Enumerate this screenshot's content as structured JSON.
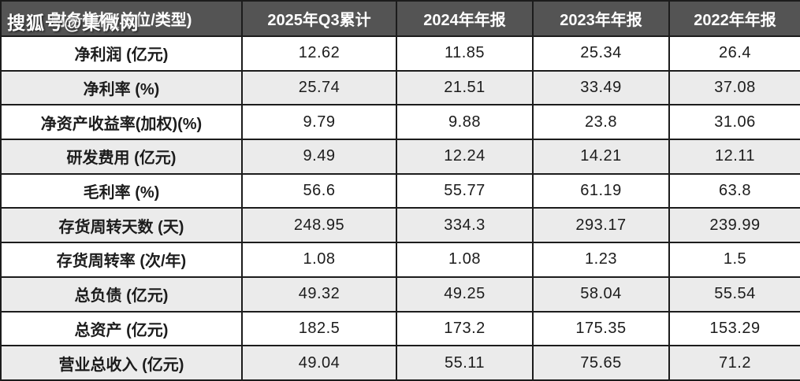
{
  "watermark": "搜狐号@集微网",
  "table": {
    "header": {
      "metric_column": "财务指标(单位/类型)",
      "columns": [
        "2025年Q3累计",
        "2024年年报",
        "2023年年报",
        "2022年年报"
      ]
    },
    "rows": [
      {
        "label": "净利润 (亿元)",
        "values": [
          "12.62",
          "11.85",
          "25.34",
          "26.4"
        ]
      },
      {
        "label": "净利率 (%)",
        "values": [
          "25.74",
          "21.51",
          "33.49",
          "37.08"
        ]
      },
      {
        "label": "净资产收益率(加权)(%)",
        "values": [
          "9.79",
          "9.88",
          "23.8",
          "31.06"
        ]
      },
      {
        "label": "研发费用 (亿元)",
        "values": [
          "9.49",
          "12.24",
          "14.21",
          "12.11"
        ]
      },
      {
        "label": "毛利率 (%)",
        "values": [
          "56.6",
          "55.77",
          "61.19",
          "63.8"
        ]
      },
      {
        "label": "存货周转天数 (天)",
        "values": [
          "248.95",
          "334.3",
          "293.17",
          "239.99"
        ]
      },
      {
        "label": "存货周转率 (次/年)",
        "values": [
          "1.08",
          "1.08",
          "1.23",
          "1.5"
        ]
      },
      {
        "label": "总负债 (亿元)",
        "values": [
          "49.32",
          "49.25",
          "58.04",
          "55.54"
        ]
      },
      {
        "label": "总资产 (亿元)",
        "values": [
          "182.5",
          "173.2",
          "175.35",
          "153.29"
        ]
      },
      {
        "label": "营业总收入 (亿元)",
        "values": [
          "49.04",
          "55.11",
          "75.65",
          "71.2"
        ]
      }
    ]
  },
  "colors": {
    "header_bg": "#545454",
    "header_text": "#ffffff",
    "row_alt_bg": "#ebebeb",
    "row_bg": "#ffffff",
    "border": "#1c1c1c",
    "body_text": "#1c1c1c",
    "watermark_text": "#ffffff"
  },
  "chart_data": {
    "type": "table",
    "title": "财务指标(单位/类型)",
    "categories": [
      "2025年Q3累计",
      "2024年年报",
      "2023年年报",
      "2022年年报"
    ],
    "series": [
      {
        "name": "净利润 (亿元)",
        "values": [
          12.62,
          11.85,
          25.34,
          26.4
        ]
      },
      {
        "name": "净利率 (%)",
        "values": [
          25.74,
          21.51,
          33.49,
          37.08
        ]
      },
      {
        "name": "净资产收益率(加权)(%)",
        "values": [
          9.79,
          9.88,
          23.8,
          31.06
        ]
      },
      {
        "name": "研发费用 (亿元)",
        "values": [
          9.49,
          12.24,
          14.21,
          12.11
        ]
      },
      {
        "name": "毛利率 (%)",
        "values": [
          56.6,
          55.77,
          61.19,
          63.8
        ]
      },
      {
        "name": "存货周转天数 (天)",
        "values": [
          248.95,
          334.3,
          293.17,
          239.99
        ]
      },
      {
        "name": "存货周转率 (次/年)",
        "values": [
          1.08,
          1.08,
          1.23,
          1.5
        ]
      },
      {
        "name": "总负债 (亿元)",
        "values": [
          49.32,
          49.25,
          58.04,
          55.54
        ]
      },
      {
        "name": "总资产 (亿元)",
        "values": [
          182.5,
          173.2,
          175.35,
          153.29
        ]
      },
      {
        "name": "营业总收入 (亿元)",
        "values": [
          49.04,
          55.11,
          75.65,
          71.2
        ]
      }
    ],
    "legend_position": "none",
    "grid": true
  }
}
